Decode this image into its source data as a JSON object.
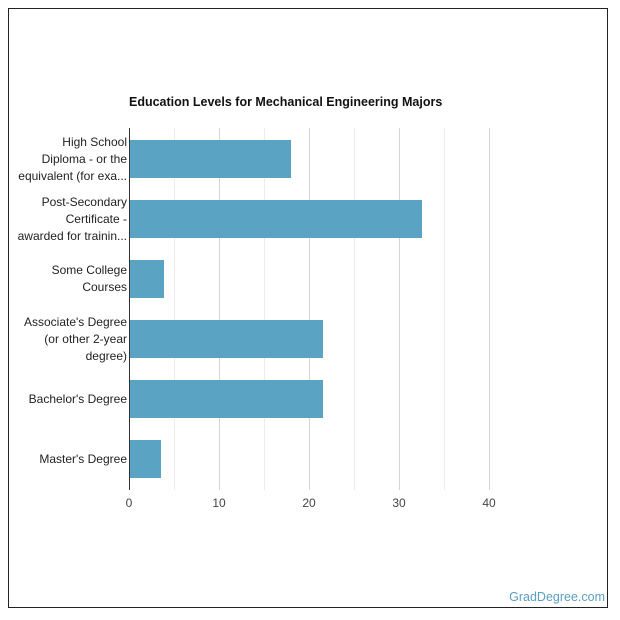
{
  "chart_data": {
    "type": "bar",
    "orientation": "horizontal",
    "title": "Education Levels for Mechanical Engineering Majors",
    "xlabel": "",
    "ylabel": "",
    "categories": [
      "High School Diploma - or the equivalent (for exa...",
      "Post-Secondary Certificate - awarded for trainin...",
      "Some College Courses",
      "Associate's Degree (or other 2-year degree)",
      "Bachelor's Degree",
      "Master's Degree"
    ],
    "values": [
      18.0,
      32.6,
      3.9,
      21.6,
      21.6,
      3.6
    ],
    "xlim": [
      0,
      42
    ],
    "xticks": [
      0,
      10,
      20,
      30,
      40
    ],
    "grid": true,
    "legend": null,
    "bar_color": "#5ba3c2"
  },
  "chart": {
    "title": "Education Levels for Mechanical Engineering Majors",
    "labels": [
      [
        "High School",
        "Diploma - or the",
        "equivalent (for exa..."
      ],
      [
        "Post-Secondary",
        "Certificate -",
        "awarded for trainin..."
      ],
      [
        "Some College",
        "Courses"
      ],
      [
        "Associate's Degree",
        "(or other 2-year",
        "degree)"
      ],
      [
        "Bachelor's Degree"
      ],
      [
        "Master's Degree"
      ]
    ],
    "ticks": [
      "0",
      "10",
      "20",
      "30",
      "40"
    ]
  },
  "footer": {
    "watermark": "GradDegree.com"
  }
}
